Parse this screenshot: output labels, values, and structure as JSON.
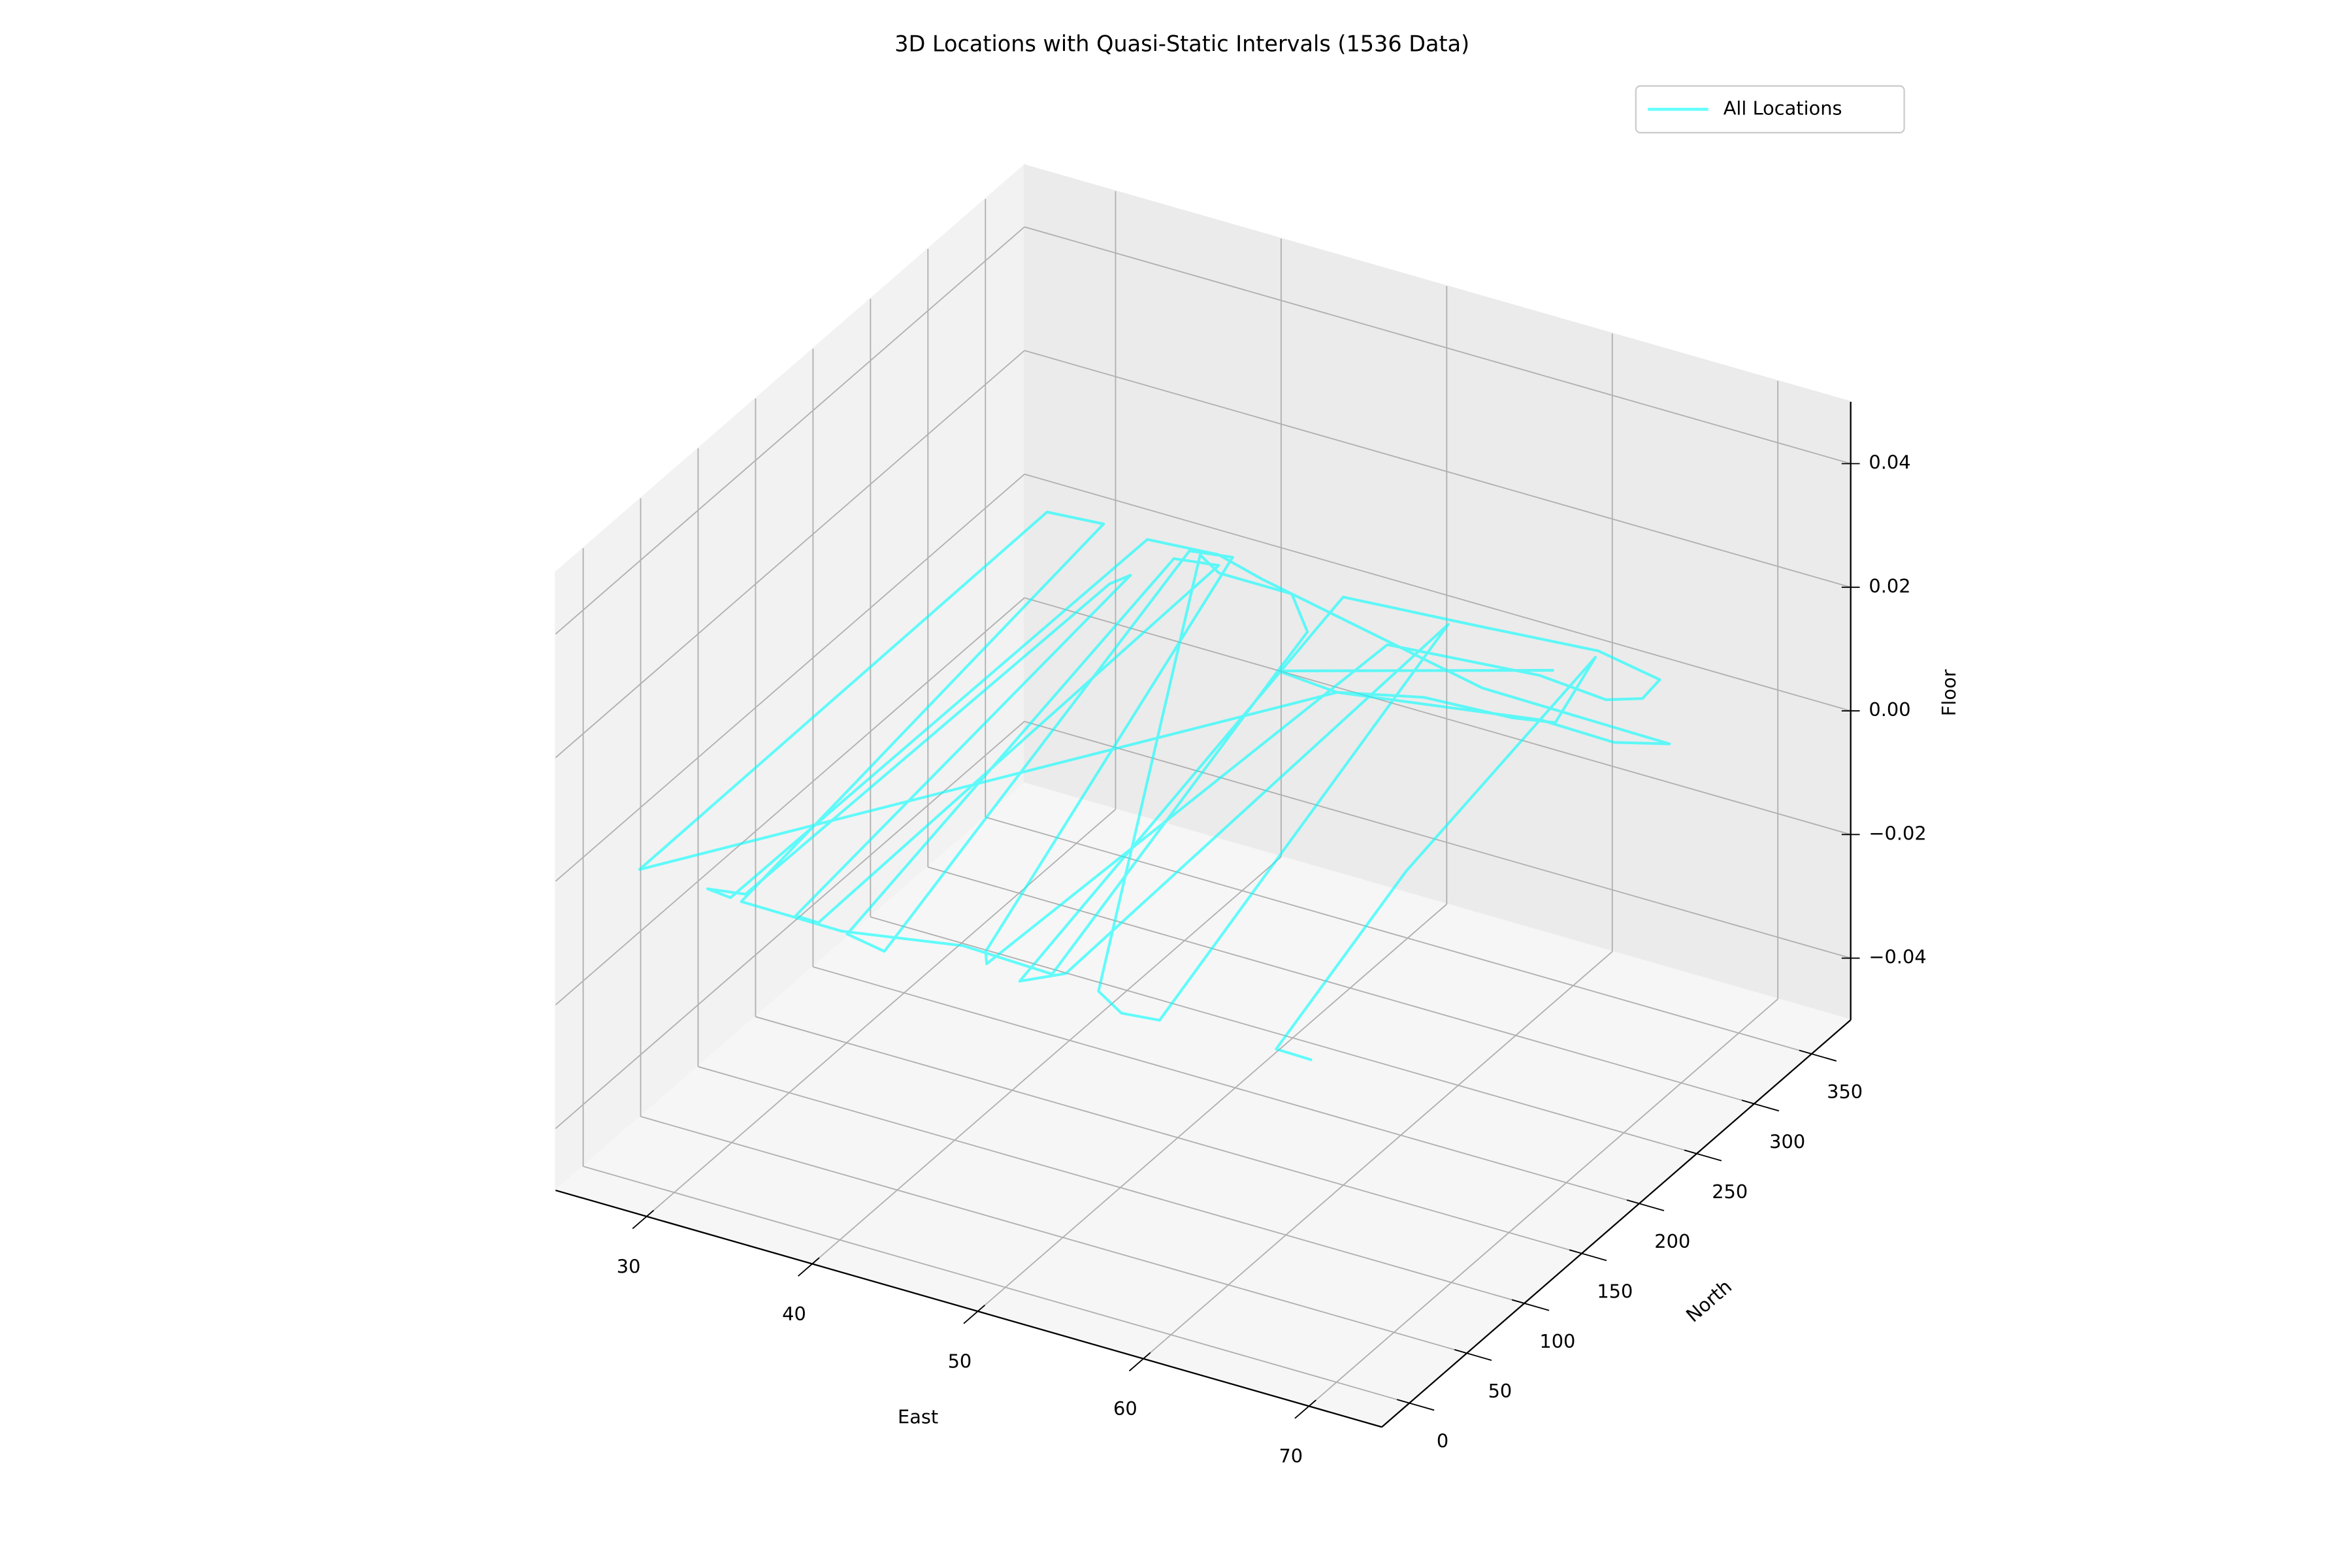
{
  "chart_data": {
    "type": "line3d",
    "title": "3D Locations with Quasi-Static Intervals (1536 Data)",
    "x_label": "East",
    "y_label": "North",
    "z_label": "Floor",
    "xlim": [
      24.5,
      74.4
    ],
    "ylim": [
      -24,
      384
    ],
    "zlim": [
      -0.05,
      0.05
    ],
    "xticks": [
      30,
      40,
      50,
      60,
      70
    ],
    "yticks": [
      0,
      50,
      100,
      150,
      200,
      250,
      300,
      350
    ],
    "zticks": [
      {
        "value": -0.04,
        "label": "−0.04"
      },
      {
        "value": -0.02,
        "label": "−0.02"
      },
      {
        "value": 0,
        "label": "0.00"
      },
      0.02,
      0.04
    ],
    "grid": true,
    "legend": "upper right",
    "series": [
      {
        "name": "All Locations",
        "color": "#00ffff",
        "alpha": 0.6,
        "x": [
          68.2,
          66.0,
          62.6,
          60.0,
          61.6,
          59.4,
          54.3,
          50.1,
          46.3,
          45.6,
          42.9,
          38.5,
          36.7,
          54.9,
          57.1,
          59.2,
          51.6,
          52.5,
          50.8,
          45.4,
          53.2,
          59.8,
          64.1,
          64.3,
          62.7,
          58.4,
          49.9,
          48.4,
          47.7,
          38.3,
          36.0,
          43.1,
          40.5,
          35.7,
          38.1,
          38.6,
          37.2,
          34.6,
          34.1,
          33.8,
          31.8,
          33.3,
          33.5,
          37.5,
          40.8,
          56.5,
          67.9,
          65.3,
          60.8,
          50.1,
          27.7,
          27.5,
          30.7,
          34.0,
          40.1,
          46.4,
          51.9,
          46.3,
          58.8
        ],
        "y": [
          4.6,
          5.1,
          167.0,
          369.4,
          311.4,
          305.7,
          302.1,
          287.1,
          290.5,
          326.2,
          351.5,
          351.5,
          361.1,
          10.4,
          -1.3,
          1.6,
          362.4,
          16.6,
          0.9,
          360.2,
          367.7,
          374.7,
          366.3,
          348.3,
          339.6,
          343.6,
          333.8,
          6.8,
          16.0,
          366.4,
          361.8,
          -5.9,
          -0.8,
          352.6,
          357.2,
          1.5,
          2.0,
          330.7,
          319.7,
          7.2,
          3.1,
          1.4,
          361.3,
          365.3,
          356.1,
          321.7,
          320.0,
          309.2,
          310.2,
          287.1,
          3.0,
          360.4,
          363.6,
          0.8,
          0.1,
          15.4,
          13.2,
          290.5,
          350.5
        ],
        "z": [
          0,
          0,
          0,
          0,
          0,
          0,
          0,
          0,
          0,
          0,
          0,
          0,
          0,
          0,
          0,
          0,
          0,
          0,
          0,
          0,
          0,
          0,
          0,
          0,
          0,
          0,
          0,
          0,
          0,
          0,
          0,
          0,
          0,
          0,
          0,
          0,
          0,
          0,
          0,
          0,
          0,
          0,
          0,
          0,
          0,
          0,
          0,
          0,
          0,
          0,
          0,
          0,
          0,
          0,
          0,
          0,
          0,
          0,
          0
        ]
      }
    ]
  }
}
